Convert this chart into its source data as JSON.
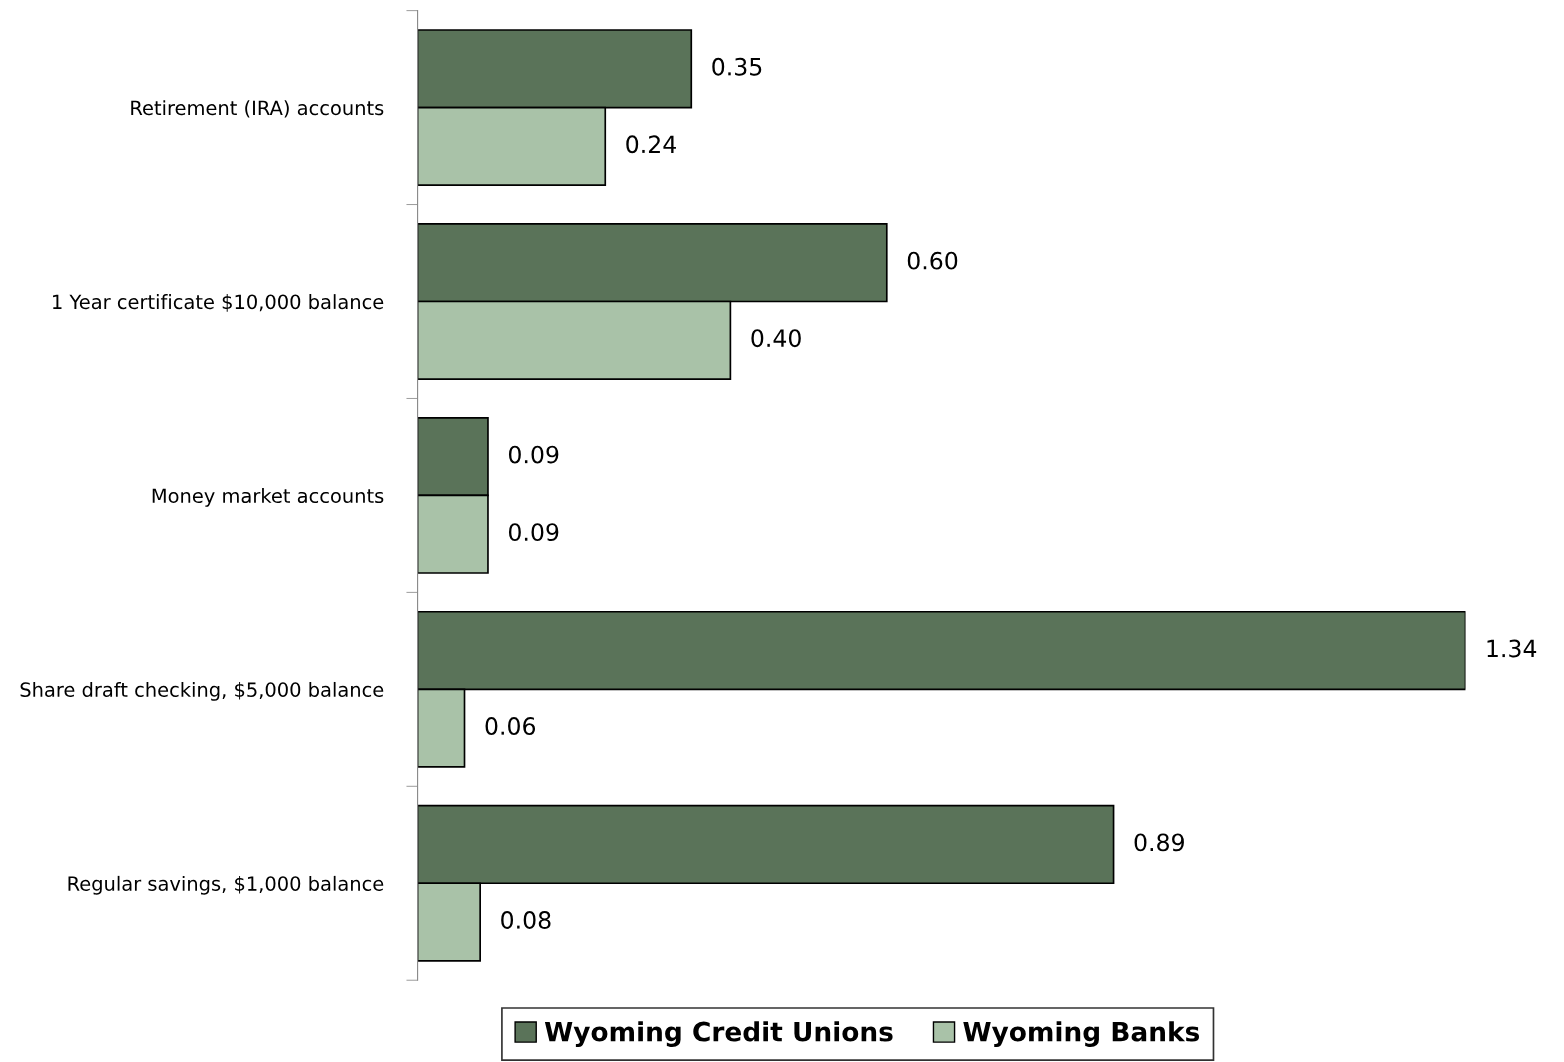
{
  "chart_data": {
    "type": "bar",
    "orientation": "horizontal",
    "categories": [
      "Retirement (IRA) accounts",
      "1 Year certificate $10,000 balance",
      "Money market accounts",
      "Share draft checking, $5,000 balance",
      "Regular savings, $1,000 balance"
    ],
    "series": [
      {
        "name": "Wyoming Credit Unions",
        "color": "#5a7359",
        "values": [
          0.35,
          0.6,
          0.09,
          1.34,
          0.89
        ],
        "value_labels": [
          "0.35",
          "0.60",
          "0.09",
          "1.34",
          "0.89"
        ]
      },
      {
        "name": "Wyoming Banks",
        "color": "#a9c2a8",
        "values": [
          0.24,
          0.4,
          0.09,
          0.06,
          0.08
        ],
        "value_labels": [
          "0.24",
          "0.40",
          "0.09",
          "0.06",
          "0.08"
        ]
      }
    ],
    "data_labels": true,
    "legend": "bottom",
    "grid": false,
    "tick_labels": "y"
  }
}
